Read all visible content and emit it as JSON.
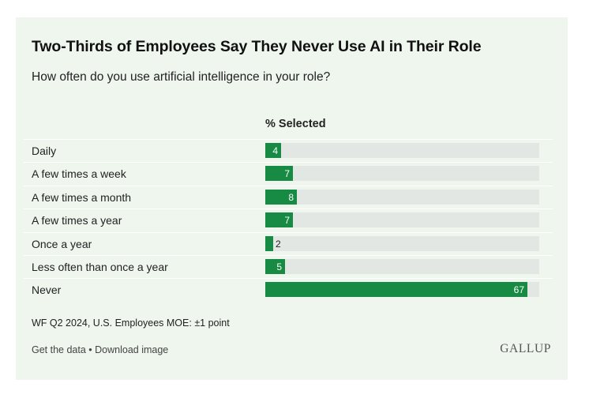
{
  "chart_data": {
    "type": "bar",
    "title": "Two-Thirds of Employees Say They Never Use AI in Their Role",
    "subtitle": "How often do you use artificial intelligence in your role?",
    "column_header": "% Selected",
    "categories": [
      "Daily",
      "A few times a week",
      "A few times a month",
      "A few times a year",
      "Once a year",
      "Less often than once a year",
      "Never"
    ],
    "values": [
      4,
      7,
      8,
      7,
      2,
      5,
      67
    ],
    "xlim": [
      0,
      70
    ],
    "orientation": "horizontal",
    "bar_color": "#178a43",
    "track_color": "#e3e7e3"
  },
  "footnote": "WF Q2 2024, U.S. Employees MOE: ±1 point",
  "links": {
    "get_data": "Get the data",
    "separator": " • ",
    "download": "Download image"
  },
  "brand": "GALLUP",
  "colors": {
    "card_bg": "#eef6ee",
    "accent": "#178a43"
  }
}
